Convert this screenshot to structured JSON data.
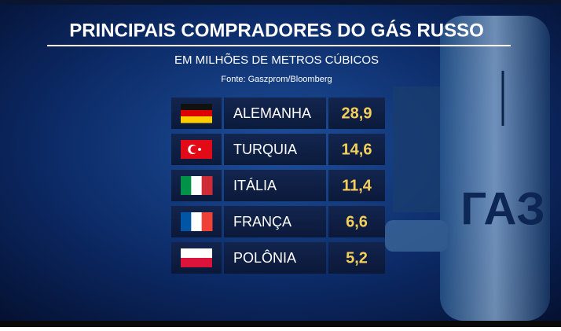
{
  "header": {
    "title": "PRINCIPAIS COMPRADORES DO GÁS RUSSO",
    "subtitle": "EM MILHÕES DE METROS CÚBICOS",
    "source": "Fonte: Gaszprom/Bloomberg"
  },
  "table": {
    "rows": [
      [
        "ALEMANHA",
        "28,9"
      ],
      [
        "TURQUIA",
        "14,6"
      ],
      [
        "ITÁLIA",
        "11,4"
      ],
      [
        "FRANÇA",
        "6,6"
      ],
      [
        "POLÔNIA",
        "5,2"
      ]
    ]
  },
  "background": {
    "label": "ГАЗ"
  }
}
